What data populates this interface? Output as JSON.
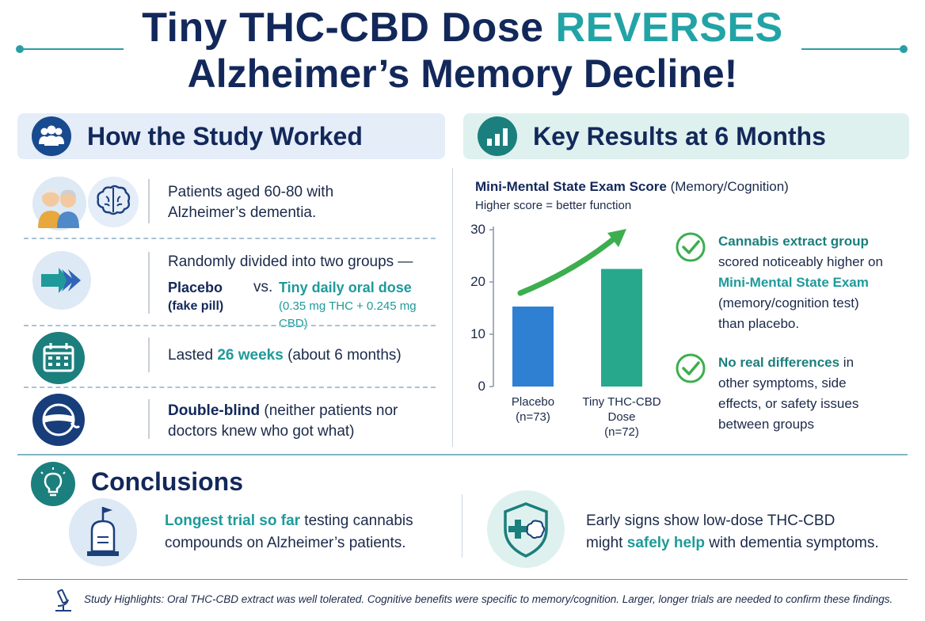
{
  "title": {
    "line1_a": "Tiny THC-CBD Dose ",
    "line1_b": "REVERSES",
    "line2": "Alzheimer’s Memory Decline!"
  },
  "study": {
    "heading": "How the Study Worked",
    "row1": {
      "line1": "Patients aged 60-80 with",
      "line2": "Alzheimer’s dementia."
    },
    "row2": {
      "intro": "Randomly divided into two groups —",
      "placebo": "Placebo",
      "placebo_note": "(fake pill)",
      "vs": "vs.",
      "dose": "Tiny daily oral dose",
      "dose_note": "(0.35 mg THC + 0.245 mg CBD)"
    },
    "row3": {
      "pre": "Lasted ",
      "weeks": "26 weeks",
      "post": " (about 6 months)"
    },
    "row4": {
      "bold": "Double-blind",
      "rest1": " (neither patients nor",
      "line2": "doctors knew who got what)"
    }
  },
  "results": {
    "heading": "Key Results at 6 Months",
    "chart_title_bold": "Mini-Mental State Exam Score",
    "chart_title_rest": " (Memory/Cognition)",
    "chart_subtitle": "Higher score = better function",
    "check1": {
      "bold": "Cannabis extract group",
      "line2": "scored noticeably higher on",
      "teal": "Mini-Mental State Exam",
      "line4": "(memory/cognition test)",
      "line5": "than placebo."
    },
    "check2": {
      "bold": "No real differences",
      "rest1": " in",
      "line2": "other symptoms, side",
      "line3": "effects, or safety issues",
      "line4": "between groups"
    }
  },
  "chart_data": {
    "type": "bar",
    "categories": [
      "Placebo (n=73)",
      "Tiny THC-CBD Dose (n=72)"
    ],
    "category_lines": [
      [
        "Placebo",
        "(n=73)"
      ],
      [
        "Tiny THC-CBD",
        "Dose",
        "(n=72)"
      ]
    ],
    "values": [
      15.3,
      22.5
    ],
    "title": "Mini-Mental State Exam Score (Memory/Cognition)",
    "subtitle": "Higher score = better function",
    "yticks": [
      0,
      10,
      20,
      30
    ],
    "ylim": [
      0,
      30
    ],
    "colors": [
      "#2f7fd3",
      "#27a88d"
    ],
    "annotation": "upward green arrow"
  },
  "conclusions": {
    "heading": "Conclusions",
    "left": {
      "teal": "Longest trial so far",
      "rest1": " testing cannabis",
      "line2": "compounds on Alzheimer’s patients."
    },
    "right": {
      "line1": "Early signs show low-dose THC-CBD",
      "pre": "might ",
      "teal": "safely help",
      "post": " with dementia symptoms."
    }
  },
  "footer": {
    "text": "Study Highlights: Oral THC-CBD extract was well tolerated. Cognitive benefits were specific to memory/cognition. Larger, longer trials are needed to confirm these findings."
  },
  "colors": {
    "navy": "#13285a",
    "teal": "#22a3a6",
    "green": "#3cae4e",
    "blue": "#2f7fd3"
  }
}
